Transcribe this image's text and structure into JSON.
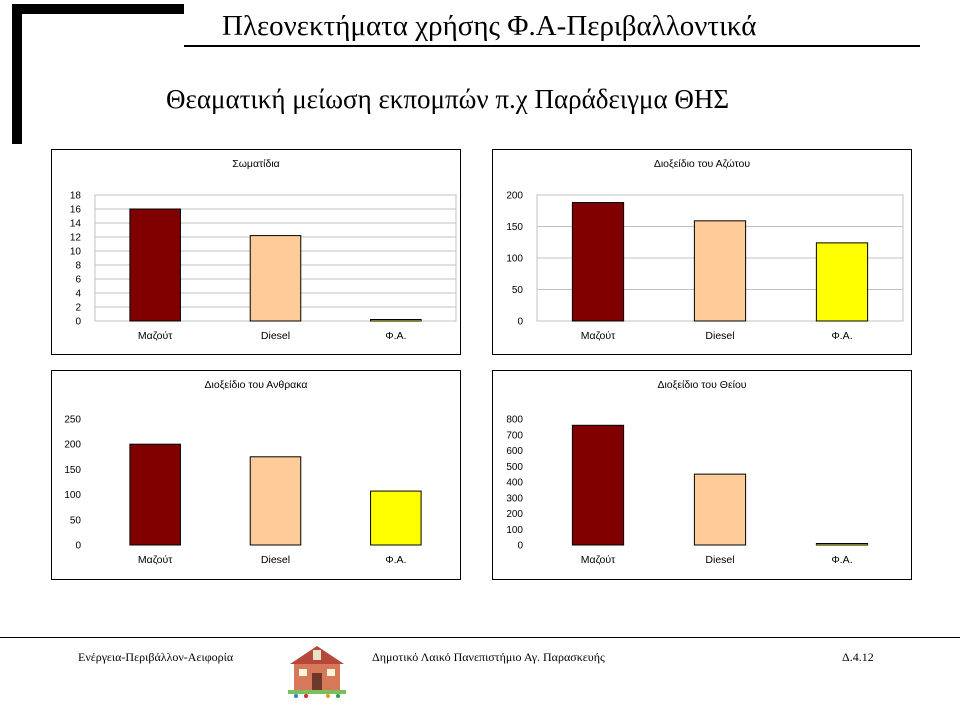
{
  "slide": {
    "title": "Πλεονεκτήματα χρήσης Φ.Α-Περιβαλλοντικά",
    "subtitle": "Θεαματική μείωση εκπομπών π.χ Παράδειγμα ΘΗΣ"
  },
  "footer": {
    "left": "Ενέργεια-Περιβάλλον-Αειφορία",
    "middle": "Δημοτικό Λαικό Πανεπιστήμιο Αγ. Παρασκευής",
    "right": "Δ.4.12"
  },
  "colors": {
    "mazout": "#800000",
    "diesel": "#ffcc99",
    "fa": "#ffff00",
    "grid": "#c0c0c0"
  },
  "chart_data": [
    {
      "type": "bar",
      "title": "Σωματίδια",
      "categories": [
        "Μαζούτ",
        "Diesel",
        "Φ.Α."
      ],
      "values": [
        16,
        12.2,
        0.1
      ],
      "ylim": [
        0,
        18
      ],
      "yticks": [
        0,
        2,
        4,
        6,
        8,
        10,
        12,
        14,
        16,
        18
      ],
      "grid": true
    },
    {
      "type": "bar",
      "title": "Διοξείδιο του Αζώτου",
      "categories": [
        "Μαζούτ",
        "Diesel",
        "Φ.Α."
      ],
      "values": [
        188,
        159,
        124
      ],
      "ylim": [
        0,
        200
      ],
      "yticks": [
        0,
        50,
        100,
        150,
        200
      ],
      "grid": true
    },
    {
      "type": "bar",
      "title": "Διοξείδιο του Ανθρακα",
      "categories": [
        "Μαζούτ",
        "Diesel",
        "Φ.Α."
      ],
      "values": [
        200,
        175,
        107
      ],
      "ylim": [
        0,
        250
      ],
      "yticks": [
        0,
        50,
        100,
        150,
        200,
        250
      ],
      "grid": false
    },
    {
      "type": "bar",
      "title": "Διοξείδιο του Θείου",
      "categories": [
        "Μαζούτ",
        "Diesel",
        "Φ.Α."
      ],
      "values": [
        760,
        450,
        0
      ],
      "ylim": [
        0,
        800
      ],
      "yticks": [
        0,
        100,
        200,
        300,
        400,
        500,
        600,
        700,
        800
      ],
      "grid": false
    }
  ]
}
